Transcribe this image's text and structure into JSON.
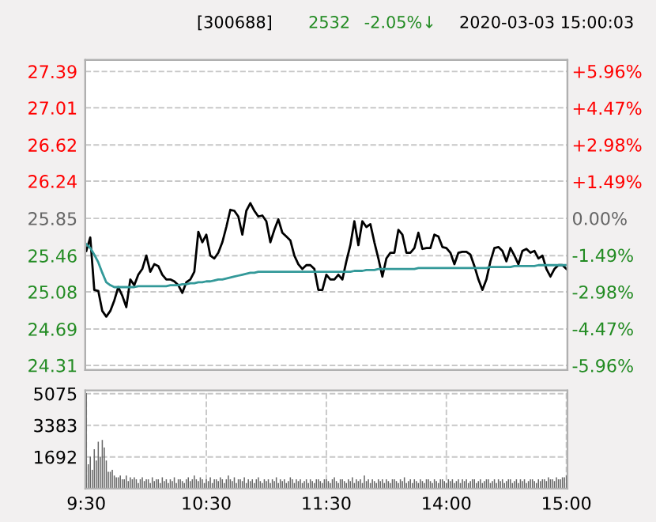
{
  "chart_data": [
    {
      "type": "line",
      "title": "[300688]",
      "annotations": [
        "2532",
        "-2.05%↓",
        "2020-03-03 15:00:03"
      ],
      "grid": "y",
      "tick_labels": "y",
      "line_style": "solid",
      "categories": [
        null,
        null,
        null,
        null,
        null,
        null,
        null,
        null,
        null,
        null,
        null,
        null,
        null,
        null,
        null,
        null,
        null,
        null,
        null,
        null,
        null,
        null,
        null,
        null,
        null,
        null,
        null,
        null,
        null,
        null,
        null,
        null,
        null,
        null,
        null,
        null,
        null,
        null,
        null,
        null,
        null,
        null,
        null,
        null,
        null,
        null,
        null,
        null,
        null,
        null,
        null,
        null,
        null,
        null,
        null,
        null,
        null,
        null,
        null,
        null,
        null,
        null,
        null,
        null,
        null,
        null,
        null,
        null,
        null,
        null,
        null,
        null,
        null,
        null,
        null,
        null,
        null,
        null,
        null,
        null,
        null,
        null,
        null,
        null,
        null,
        null,
        null,
        null,
        null,
        null,
        null,
        null,
        null,
        null,
        null,
        null,
        null,
        null,
        null,
        null,
        null,
        null,
        null,
        null,
        null,
        null,
        null,
        null,
        null,
        null,
        null,
        null,
        null,
        null,
        null,
        null,
        null,
        null,
        null,
        null,
        null
      ],
      "ylim": [
        24.26,
        27.51
      ],
      "yticks": [
        24.31,
        24.69,
        25.08,
        25.46,
        25.85,
        26.24,
        26.62,
        27.01,
        27.39
      ],
      "y2lim": [
        -6.15,
        6.41
      ],
      "y2ticks": [
        {
          "value": -5.96,
          "label": "-5.96%"
        },
        {
          "value": -4.47,
          "label": "-4.47%"
        },
        {
          "value": -2.98,
          "label": "-2.98%"
        },
        {
          "value": -1.49,
          "label": "-1.49%"
        },
        {
          "value": 0,
          "label": "0.00%"
        },
        {
          "value": 1.49,
          "label": "+1.49%"
        },
        {
          "value": 2.98,
          "label": "+2.98%"
        },
        {
          "value": 4.47,
          "label": "+4.47%"
        },
        {
          "value": 5.96,
          "label": "+5.96%"
        }
      ],
      "series": [
        {
          "color": "#000000",
          "values": [
            25.51,
            25.65,
            25.1,
            25.09,
            24.88,
            24.82,
            24.88,
            24.99,
            25.13,
            25.04,
            24.92,
            25.21,
            25.15,
            25.26,
            25.32,
            25.46,
            25.29,
            25.37,
            25.35,
            25.26,
            25.21,
            25.21,
            25.19,
            25.15,
            25.07,
            25.18,
            25.21,
            25.29,
            25.71,
            25.6,
            25.68,
            25.46,
            25.43,
            25.49,
            25.6,
            25.76,
            25.94,
            25.93,
            25.87,
            25.68,
            25.93,
            26.01,
            25.93,
            25.87,
            25.88,
            25.82,
            25.6,
            25.73,
            25.84,
            25.7,
            25.66,
            25.62,
            25.46,
            25.37,
            25.32,
            25.36,
            25.36,
            25.32,
            25.1,
            25.1,
            25.26,
            25.21,
            25.21,
            25.26,
            25.21,
            25.4,
            25.57,
            25.82,
            25.57,
            25.82,
            25.76,
            25.79,
            25.6,
            25.43,
            25.24,
            25.43,
            25.49,
            25.49,
            25.73,
            25.68,
            25.49,
            25.49,
            25.54,
            25.7,
            25.53,
            25.54,
            25.54,
            25.68,
            25.66,
            25.55,
            25.54,
            25.49,
            25.37,
            25.49,
            25.5,
            25.5,
            25.47,
            25.35,
            25.21,
            25.1,
            25.21,
            25.4,
            25.54,
            25.55,
            25.51,
            25.4,
            25.54,
            25.46,
            25.37,
            25.51,
            25.53,
            25.49,
            25.51,
            25.43,
            25.46,
            25.32,
            25.24,
            25.32,
            25.36,
            25.36,
            25.32
          ]
        },
        {
          "color": "#339999",
          "values": [
            25.58,
            25.54,
            25.47,
            25.39,
            25.28,
            25.18,
            25.15,
            25.13,
            25.13,
            25.13,
            25.13,
            25.13,
            25.13,
            25.14,
            25.14,
            25.14,
            25.14,
            25.14,
            25.14,
            25.14,
            25.14,
            25.15,
            25.15,
            25.15,
            25.16,
            25.16,
            25.17,
            25.17,
            25.18,
            25.18,
            25.19,
            25.19,
            25.2,
            25.21,
            25.21,
            25.22,
            25.23,
            25.24,
            25.25,
            25.26,
            25.27,
            25.28,
            25.28,
            25.29,
            25.29,
            25.29,
            25.29,
            25.29,
            25.29,
            25.29,
            25.29,
            25.29,
            25.29,
            25.29,
            25.29,
            25.29,
            25.29,
            25.29,
            25.29,
            25.29,
            25.29,
            25.29,
            25.29,
            25.29,
            25.29,
            25.29,
            25.29,
            25.3,
            25.3,
            25.3,
            25.31,
            25.31,
            25.31,
            25.32,
            25.32,
            25.32,
            25.32,
            25.32,
            25.32,
            25.32,
            25.32,
            25.32,
            25.32,
            25.33,
            25.33,
            25.33,
            25.33,
            25.33,
            25.33,
            25.33,
            25.33,
            25.33,
            25.33,
            25.33,
            25.33,
            25.33,
            25.33,
            25.33,
            25.33,
            25.33,
            25.33,
            25.34,
            25.34,
            25.34,
            25.34,
            25.34,
            25.34,
            25.35,
            25.35,
            25.35,
            25.35,
            25.35,
            25.35,
            25.36,
            25.36,
            25.36,
            25.36,
            25.36,
            25.36,
            25.36,
            25.36
          ]
        }
      ]
    },
    {
      "type": "bar",
      "grid": true,
      "categories": [
        "9:30",
        null,
        null,
        null,
        null,
        null,
        null,
        null,
        null,
        null,
        null,
        null,
        null,
        null,
        null,
        null,
        null,
        null,
        null,
        null,
        null,
        null,
        null,
        null,
        null,
        null,
        null,
        null,
        null,
        null,
        null,
        null,
        null,
        null,
        null,
        null,
        null,
        null,
        null,
        null,
        null,
        null,
        null,
        null,
        null,
        null,
        null,
        null,
        null,
        null,
        null,
        null,
        null,
        null,
        null,
        null,
        null,
        null,
        null,
        null,
        "10:30",
        null,
        null,
        null,
        null,
        null,
        null,
        null,
        null,
        null,
        null,
        null,
        null,
        null,
        null,
        null,
        null,
        null,
        null,
        null,
        null,
        null,
        null,
        null,
        null,
        null,
        null,
        null,
        null,
        null,
        null,
        null,
        null,
        null,
        null,
        null,
        null,
        null,
        null,
        null,
        null,
        null,
        null,
        null,
        null,
        null,
        null,
        null,
        null,
        null,
        null,
        null,
        null,
        null,
        null,
        null,
        null,
        null,
        null,
        null,
        "11:30",
        null,
        null,
        null,
        null,
        null,
        null,
        null,
        null,
        null,
        null,
        null,
        null,
        null,
        null,
        null,
        null,
        null,
        null,
        null,
        null,
        null,
        null,
        null,
        null,
        null,
        null,
        null,
        null,
        null,
        null,
        null,
        null,
        null,
        null,
        null,
        null,
        null,
        null,
        null,
        null,
        null,
        null,
        null,
        null,
        null,
        null,
        null,
        null,
        null,
        null,
        null,
        null,
        null,
        null,
        null,
        null,
        null,
        null,
        null,
        "14:00",
        null,
        null,
        null,
        null,
        null,
        null,
        null,
        null,
        null,
        null,
        null,
        null,
        null,
        null,
        null,
        null,
        null,
        null,
        null,
        null,
        null,
        null,
        null,
        null,
        null,
        null,
        null,
        null,
        null,
        null,
        null,
        null,
        null,
        null,
        null,
        null,
        null,
        null,
        null,
        null,
        null,
        null,
        null,
        null,
        null,
        null,
        null,
        null,
        null,
        null,
        null,
        null,
        null,
        null,
        null,
        null,
        null,
        null,
        null,
        "15:00"
      ],
      "ylim": [
        0,
        5245
      ],
      "yticks": [
        1692,
        3383,
        5075
      ],
      "series": [
        {
          "color": "#666666",
          "values": [
            5100,
            1300,
            1700,
            1000,
            2100,
            1500,
            2500,
            1700,
            2600,
            2200,
            1500,
            900,
            900,
            1000,
            700,
            600,
            600,
            700,
            500,
            500,
            700,
            400,
            600,
            500,
            600,
            500,
            300,
            500,
            600,
            400,
            500,
            500,
            300,
            600,
            400,
            500,
            500,
            300,
            600,
            400,
            500,
            300,
            500,
            400,
            600,
            300,
            500,
            500,
            400,
            300,
            500,
            600,
            400,
            500,
            700,
            500,
            400,
            600,
            500,
            300,
            500,
            400,
            600,
            300,
            500,
            500,
            400,
            600,
            500,
            300,
            500,
            700,
            500,
            400,
            600,
            300,
            500,
            500,
            400,
            600,
            300,
            500,
            400,
            500,
            300,
            500,
            600,
            400,
            300,
            500,
            400,
            500,
            300,
            500,
            400,
            600,
            300,
            500,
            400,
            500,
            300,
            400,
            600,
            500,
            300,
            500,
            400,
            500,
            300,
            400,
            500,
            300,
            500,
            400,
            300,
            500,
            500,
            400,
            300,
            500,
            500,
            400,
            300,
            500,
            600,
            400,
            300,
            500,
            500,
            400,
            300,
            500,
            400,
            600,
            300,
            500,
            400,
            500,
            300,
            700,
            400,
            500,
            300,
            500,
            400,
            300,
            500,
            400,
            500,
            300,
            500,
            400,
            300,
            500,
            500,
            400,
            300,
            500,
            400,
            600,
            300,
            400,
            500,
            300,
            500,
            400,
            300,
            500,
            400,
            300,
            500,
            500,
            400,
            300,
            500,
            400,
            300,
            500,
            500,
            400,
            300,
            500,
            400,
            500,
            300,
            400,
            500,
            300,
            500,
            400,
            500,
            300,
            400,
            500,
            500,
            300,
            400,
            500,
            300,
            400,
            500,
            500,
            300,
            400,
            500,
            300,
            500,
            400,
            500,
            300,
            400,
            500,
            500,
            300,
            400,
            500,
            300,
            500,
            400,
            500,
            300,
            400,
            500,
            500,
            400,
            300,
            500,
            400,
            500,
            500,
            400,
            600,
            500,
            500,
            400,
            600,
            500,
            500,
            600,
            600,
            700
          ]
        }
      ]
    }
  ]
}
